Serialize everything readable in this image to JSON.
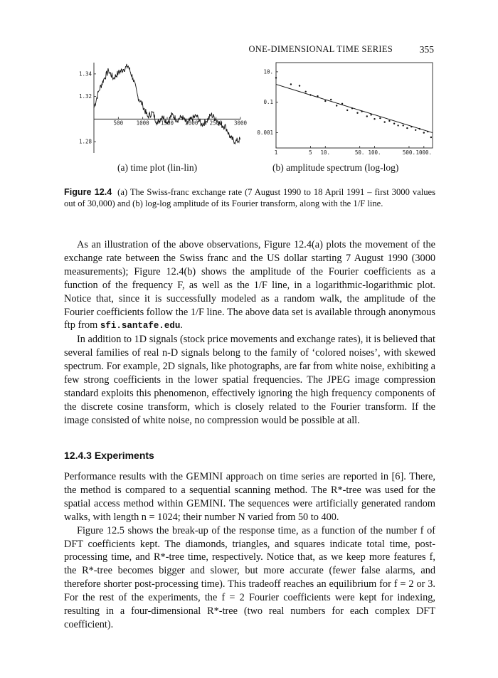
{
  "header": {
    "running_head": "ONE-DIMENSIONAL TIME SERIES",
    "page_number": "355"
  },
  "figure": {
    "caption_a": "(a) time plot (lin-lin)",
    "caption_b": "(b) amplitude spectrum (log-log)",
    "label": "Figure 12.4",
    "caption_text": "(a) The Swiss-franc exchange rate (7 August 1990 to 18 April 1991 – first 3000 values out of 30,000) and (b) log-log amplitude of its Fourier transform, along with the 1/F line."
  },
  "chart_data": [
    {
      "type": "line",
      "title": "(a) time plot (lin-lin)",
      "x_ticks": [
        "500",
        "1000",
        "1500",
        "2000",
        "2500",
        "3000"
      ],
      "y_ticks": [
        "1.34",
        "1.32",
        "1.28"
      ],
      "xlim": [
        0,
        3000
      ],
      "ylim": [
        1.27,
        1.35
      ],
      "x": [
        0,
        100,
        200,
        300,
        400,
        500,
        600,
        700,
        800,
        900,
        1000,
        1100,
        1200,
        1300,
        1400,
        1500,
        1600,
        1700,
        1800,
        1900,
        2000,
        2100,
        2200,
        2300,
        2400,
        2500,
        2600,
        2700,
        2800,
        2900,
        3000
      ],
      "y": [
        1.31,
        1.325,
        1.335,
        1.343,
        1.336,
        1.341,
        1.344,
        1.347,
        1.336,
        1.32,
        1.312,
        1.302,
        1.306,
        1.296,
        1.303,
        1.297,
        1.304,
        1.299,
        1.302,
        1.296,
        1.3,
        1.303,
        1.295,
        1.298,
        1.304,
        1.3,
        1.295,
        1.293,
        1.283,
        1.28,
        1.282
      ]
    },
    {
      "type": "scatter",
      "title": "(b) amplitude spectrum (log-log)",
      "x_scale": "log",
      "y_scale": "log",
      "x_ticks": [
        "1",
        "5",
        "10.",
        "50.",
        "100.",
        "500.",
        "1000."
      ],
      "y_ticks": [
        "10.",
        "0.1",
        "0.001"
      ],
      "xlim": [
        1,
        1500
      ],
      "ylim": [
        0.0001,
        40
      ],
      "x": [
        1,
        2,
        3,
        4,
        5,
        7,
        10,
        13,
        17,
        22,
        28,
        35,
        45,
        55,
        70,
        85,
        100,
        130,
        160,
        200,
        250,
        300,
        380,
        460,
        560,
        680,
        820,
        1000,
        1200,
        1400
      ],
      "y": [
        4,
        1.5,
        1.2,
        0.5,
        0.3,
        0.25,
        0.12,
        0.15,
        0.06,
        0.08,
        0.03,
        0.04,
        0.02,
        0.025,
        0.012,
        0.015,
        0.008,
        0.009,
        0.005,
        0.006,
        0.004,
        0.003,
        0.003,
        0.002,
        0.0025,
        0.0015,
        0.0018,
        0.001,
        0.0012,
        0.0005
      ],
      "reference_line": "1/F"
    }
  ],
  "body": {
    "paragraph1": "As an illustration of the above observations, Figure 12.4(a) plots the movement of the exchange rate between the Swiss franc and the US dollar starting 7 August 1990 (3000 measurements); Figure 12.4(b) shows the amplitude of the Fourier coefficients as a function of the frequency F, as well as the 1/F line, in a logarithmic-logarithmic plot. Notice that, since it is successfully modeled as a random walk, the amplitude of the Fourier coefficients follow the 1/F line. The above data set is available through anonymous ftp from",
    "ftp_host": "sfi.santafe.edu",
    "paragraph1_end": ".",
    "paragraph2": "In addition to 1D signals (stock price movements and exchange rates), it is believed that several families of real n-D signals belong to the family of ‘colored noises’, with skewed spectrum. For example, 2D signals, like photographs, are far from white noise, exhibiting a few strong coefficients in the lower spatial frequencies. The JPEG image compression standard exploits this phenomenon, effectively ignoring the high frequency components of the discrete cosine transform, which is closely related to the Fourier transform. If the image consisted of white noise, no compression would be possible at all."
  },
  "section": {
    "heading": "12.4.3  Experiments",
    "paragraph1": "Performance results with the GEMINI approach on time series are reported in [6]. There, the method is compared to a sequential scanning method. The R*-tree was used for the spatial access method within GEMINI. The sequences were artificially generated random walks, with length n = 1024; their number N varied from 50 to 400.",
    "paragraph2": "Figure 12.5 shows the break-up of the response time, as a function of the number f of DFT coefficients kept. The diamonds, triangles, and squares indicate total time, post-processing time, and R*-tree time, respectively. Notice that, as we keep more features f, the R*-tree becomes bigger and slower, but more accurate (fewer false alarms, and therefore shorter post-processing time). This tradeoff reaches an equilibrium for f = 2 or 3. For the rest of the experiments, the f = 2 Fourier coefficients were kept for indexing, resulting in a four-dimensional R*-tree (two real numbers for each complex DFT coefficient)."
  }
}
